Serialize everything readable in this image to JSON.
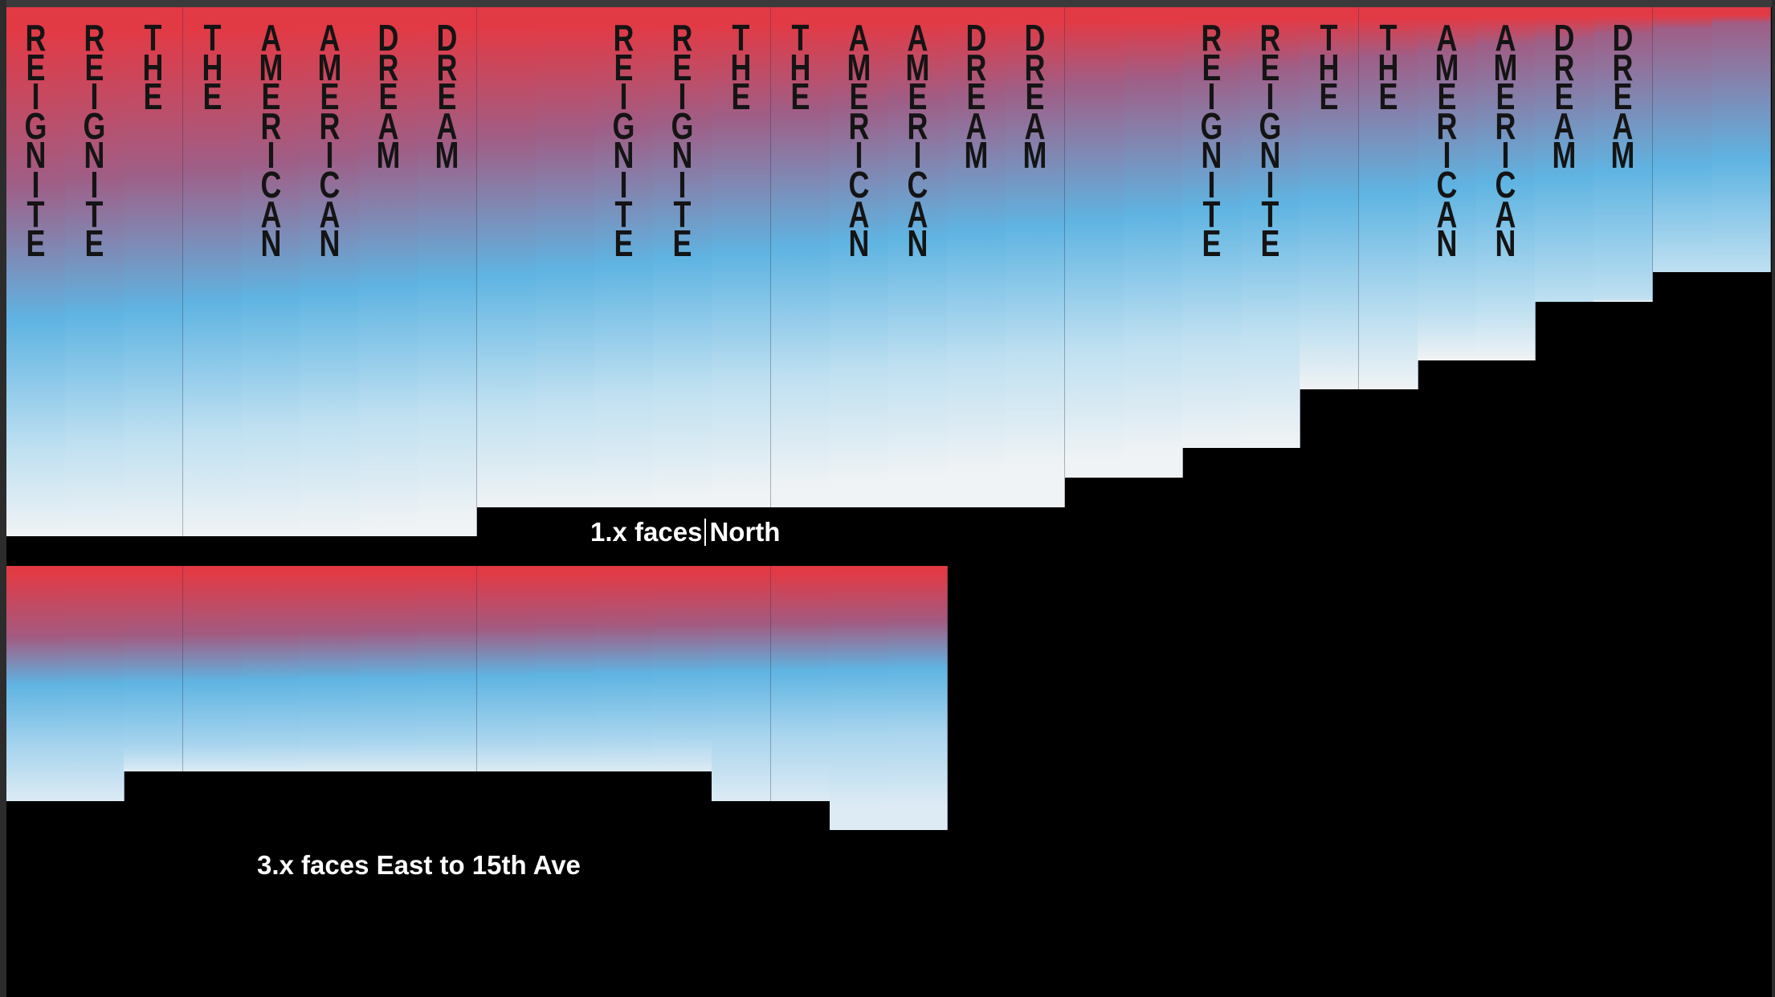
{
  "colors": {
    "background": "#000000",
    "gradient_red": "#e23a45",
    "gradient_blue": "#5fb4e2",
    "gradient_light": "#f0f3f5",
    "text_dark": "#141414",
    "caption_text": "#ffffff"
  },
  "north_section": {
    "caption_part1": "1.x faces",
    "caption_part2": "North",
    "panels": [
      {
        "word": "REIGNITE"
      },
      {
        "word": "REIGNITE"
      },
      {
        "word": "THE"
      },
      {
        "word": "THE"
      },
      {
        "word": "AMERICAN"
      },
      {
        "word": "AMERICAN"
      },
      {
        "word": "DREAM"
      },
      {
        "word": "DREAM"
      },
      {
        "word": ""
      },
      {
        "word": ""
      },
      {
        "word": "REIGNITE"
      },
      {
        "word": "REIGNITE"
      },
      {
        "word": "THE"
      },
      {
        "word": "THE"
      },
      {
        "word": "AMERICAN"
      },
      {
        "word": "AMERICAN"
      },
      {
        "word": "DREAM"
      },
      {
        "word": "DREAM"
      },
      {
        "word": ""
      },
      {
        "word": ""
      },
      {
        "word": "REIGNITE"
      },
      {
        "word": "REIGNITE"
      },
      {
        "word": "THE"
      },
      {
        "word": "THE"
      },
      {
        "word": "AMERICAN"
      },
      {
        "word": "AMERICAN"
      },
      {
        "word": "DREAM"
      },
      {
        "word": "DREAM"
      },
      {
        "word": ""
      },
      {
        "word": ""
      }
    ]
  },
  "east_section": {
    "caption": "3.x faces East to 15th Ave",
    "panel_count": 16
  }
}
